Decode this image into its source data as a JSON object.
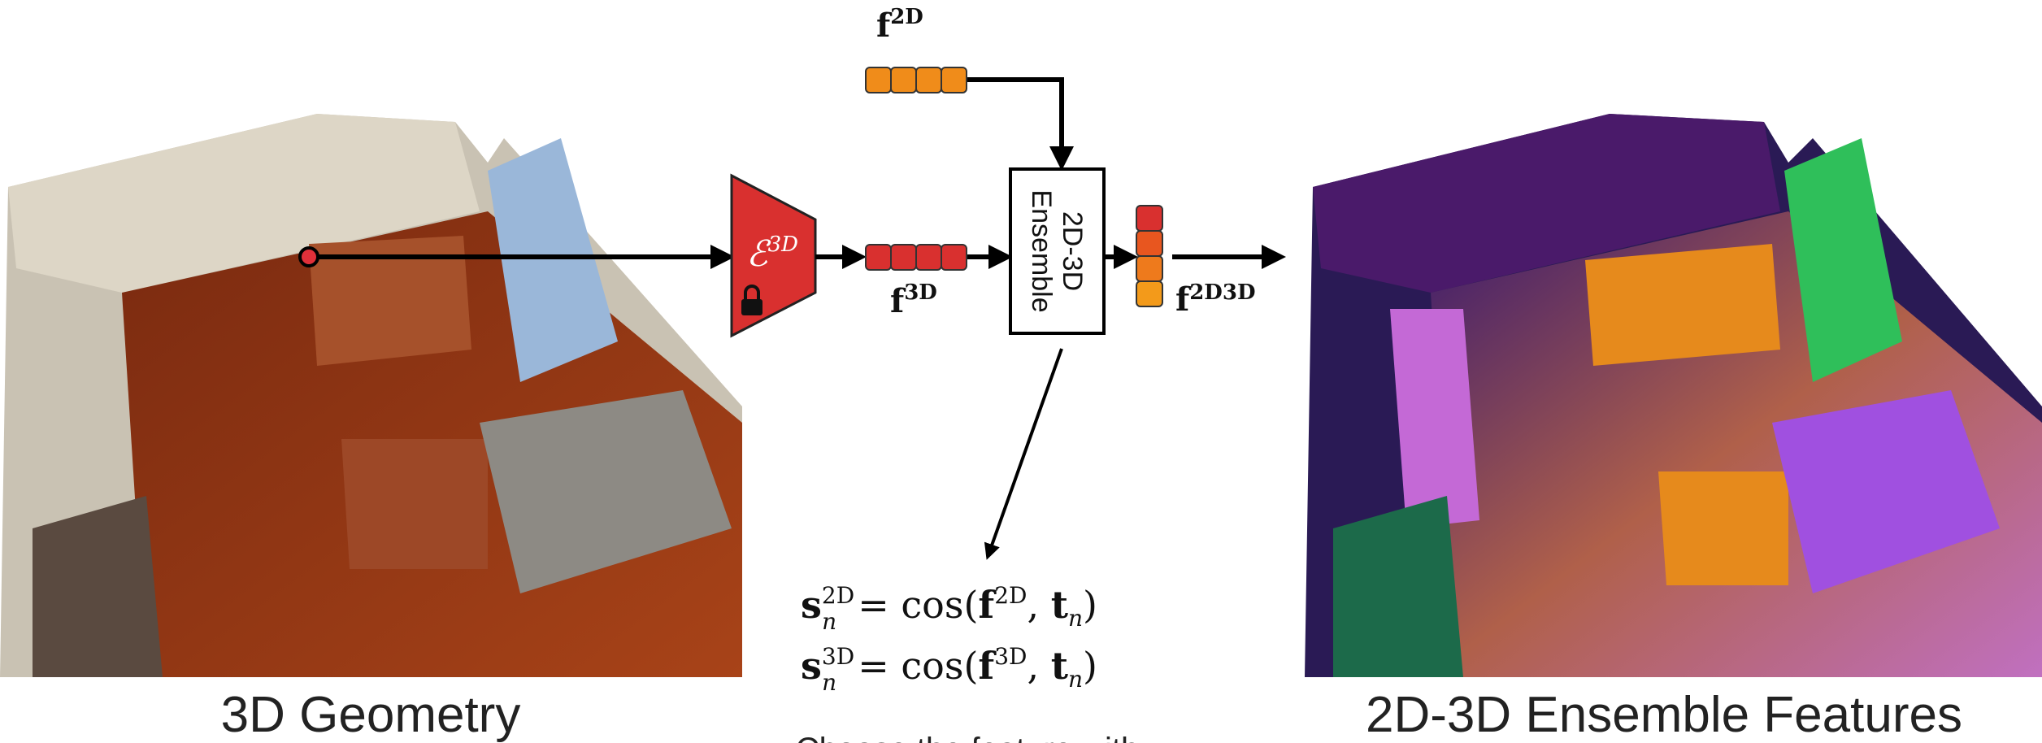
{
  "top_feature": {
    "base": "f",
    "sup": "2D"
  },
  "encoder": {
    "base": "ℰ",
    "sup": "3D"
  },
  "point_feature": {
    "base": "f",
    "sup": "3D"
  },
  "ensemble": {
    "lines": [
      "2D-3D",
      "Ensemble"
    ]
  },
  "output_feature": {
    "base": "f",
    "sup": "2D3D"
  },
  "equations": [
    {
      "base": "s",
      "sup": "2D",
      "sub": "n",
      "op": "= cos(",
      "feat": "f",
      "feat_sup": "2D",
      "sep": ", ",
      "text": "t",
      "text_sub": "n",
      "close": ")"
    },
    {
      "base": "s",
      "sup": "3D",
      "sub": "n",
      "op": "= cos(",
      "feat": "f",
      "feat_sup": "3D",
      "sep": ", ",
      "text": "t",
      "text_sub": "n",
      "close": ")"
    }
  ],
  "caption_left": "3D Geometry",
  "caption_right": "2D-3D Ensemble Features",
  "caption_bottom": "Choose the feature with"
}
